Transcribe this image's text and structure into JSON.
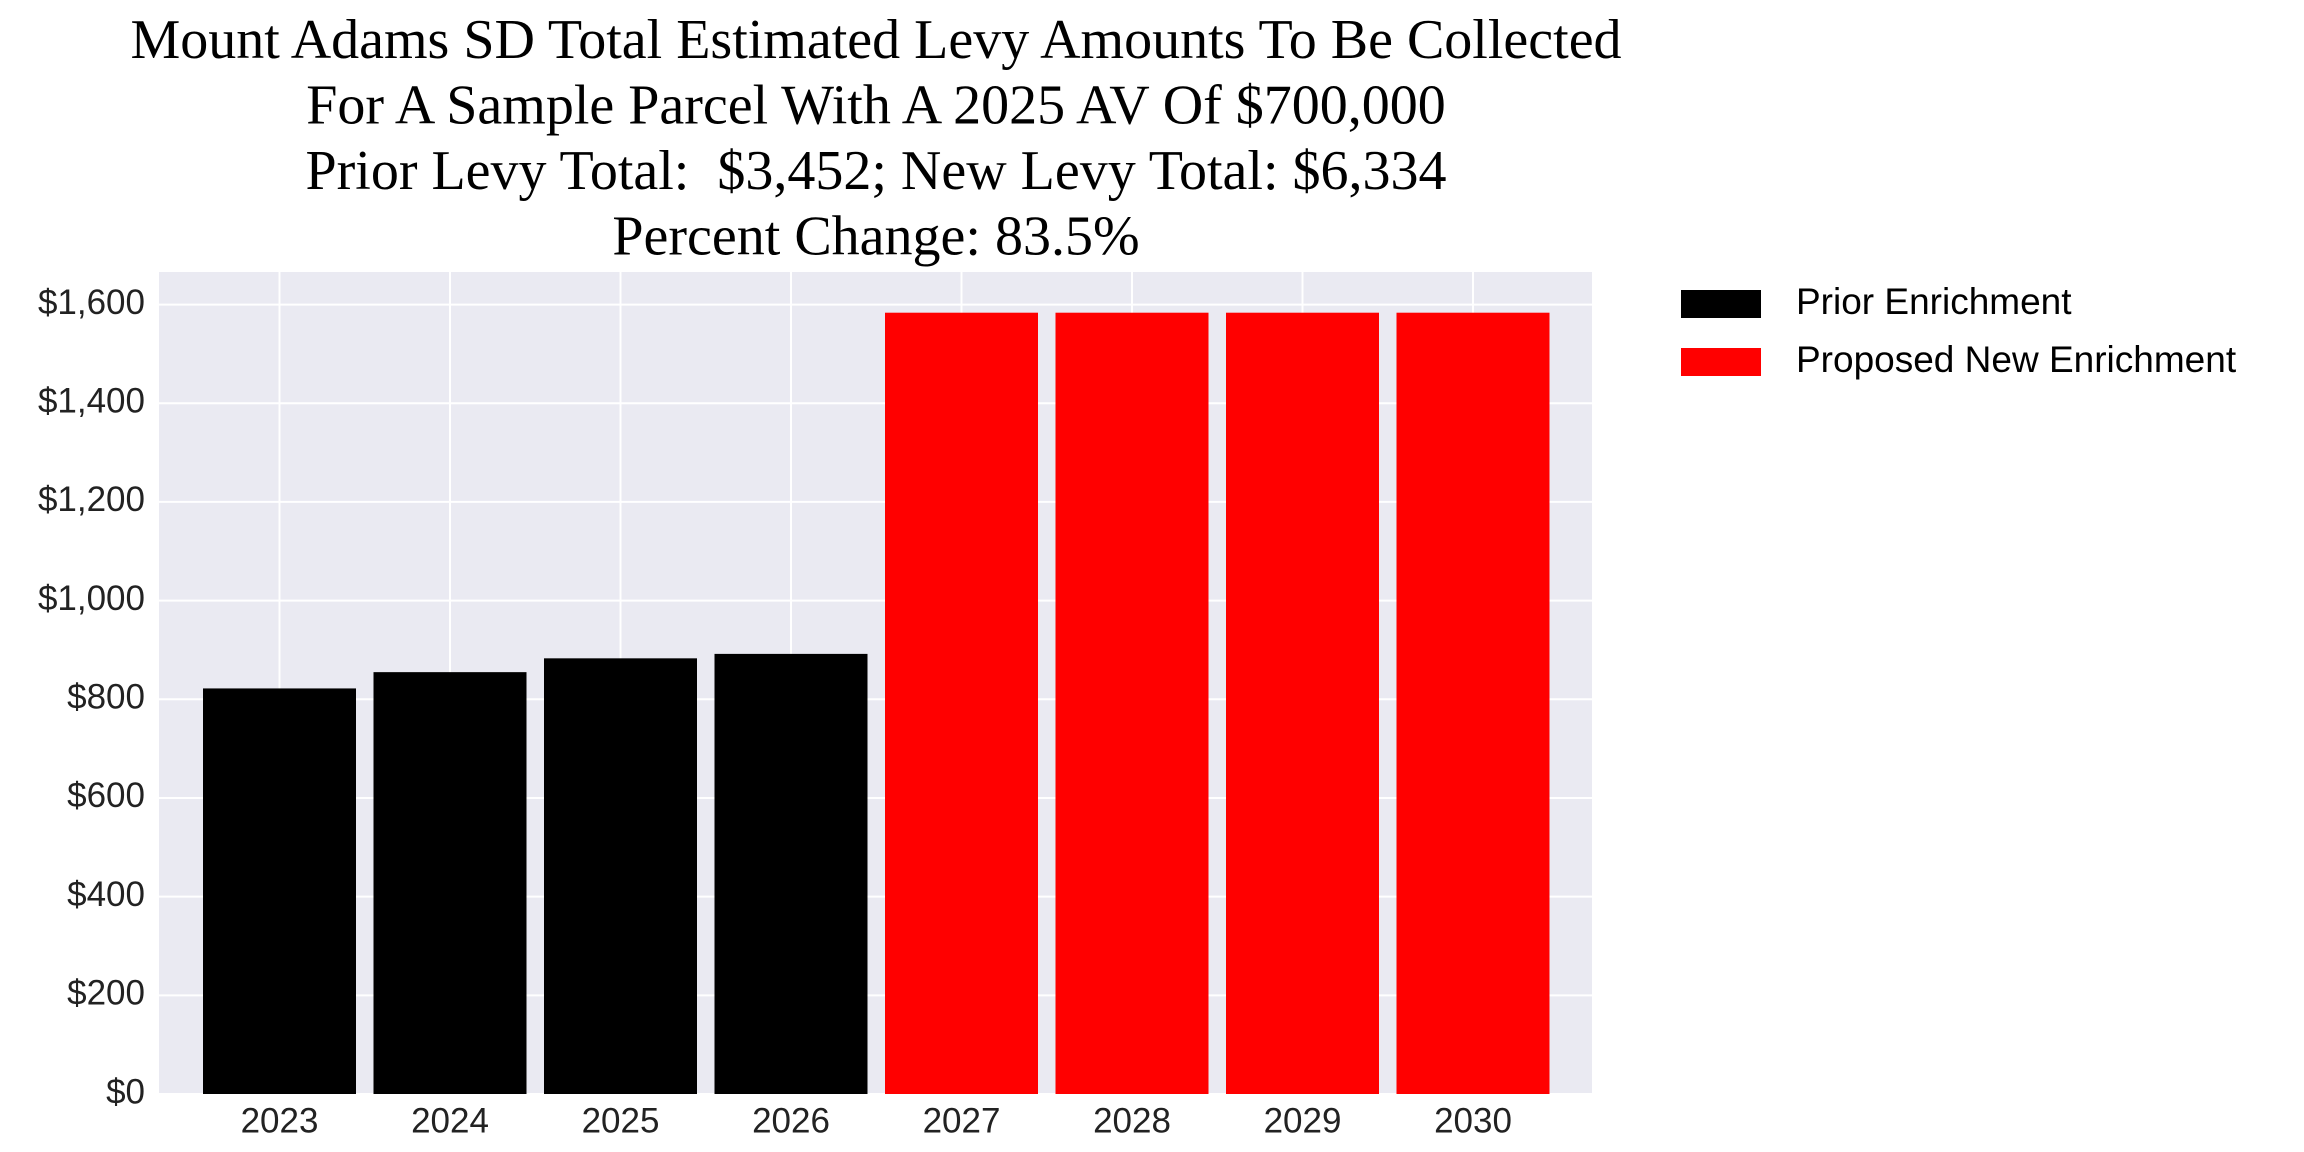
{
  "chart_data": {
    "type": "bar",
    "title": [
      "Mount Adams SD Total Estimated Levy Amounts To Be Collected",
      "For A Sample Parcel With A 2025 AV Of $700,000",
      "Prior Levy Total:  $3,452; New Levy Total: $6,334",
      "Percent Change: 83.5%"
    ],
    "categories": [
      "2023",
      "2024",
      "2025",
      "2026",
      "2027",
      "2028",
      "2029",
      "2030"
    ],
    "series": [
      {
        "name": "Prior Enrichment",
        "color": "#000000",
        "values": [
          822,
          855,
          883,
          892,
          null,
          null,
          null,
          null
        ]
      },
      {
        "name": "Proposed New Enrichment",
        "color": "#ff0000",
        "values": [
          null,
          null,
          null,
          null,
          1583.5,
          1583.5,
          1583.5,
          1583.5
        ]
      }
    ],
    "ylim": [
      0,
      1666
    ],
    "yticks": [
      {
        "value": 0,
        "label": "$0"
      },
      {
        "value": 200,
        "label": "$200"
      },
      {
        "value": 400,
        "label": "$400"
      },
      {
        "value": 600,
        "label": "$600"
      },
      {
        "value": 800,
        "label": "$800"
      },
      {
        "value": 1000,
        "label": "$1,000"
      },
      {
        "value": 1200,
        "label": "$1,200"
      },
      {
        "value": 1400,
        "label": "$1,400"
      },
      {
        "value": 1600,
        "label": "$1,600"
      }
    ],
    "grid": true,
    "legend": "outside-right"
  }
}
